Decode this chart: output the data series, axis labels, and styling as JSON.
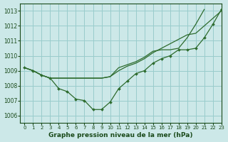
{
  "title": "Graphe pression niveau de la mer (hPa)",
  "bg_color": "#cce8e8",
  "grid_color": "#99cccc",
  "line_color": "#2d6b2d",
  "text_color": "#1a4a1a",
  "xlim": [
    -0.5,
    23
  ],
  "ylim": [
    1005.5,
    1013.5
  ],
  "yticks": [
    1006,
    1007,
    1008,
    1009,
    1010,
    1011,
    1012,
    1013
  ],
  "xticks": [
    0,
    1,
    2,
    3,
    4,
    5,
    6,
    7,
    8,
    9,
    10,
    11,
    12,
    13,
    14,
    15,
    16,
    17,
    18,
    19,
    20,
    21,
    22,
    23
  ],
  "series": [
    {
      "x": [
        0,
        1,
        2,
        3,
        4,
        5,
        6,
        7,
        8,
        9,
        10,
        11,
        12,
        13,
        14,
        15,
        16,
        17,
        18,
        19,
        20,
        21,
        22,
        23
      ],
      "y": [
        1009.2,
        1009.0,
        1008.7,
        1008.5,
        1008.5,
        1008.5,
        1008.5,
        1008.5,
        1008.5,
        1008.5,
        1008.6,
        1009.0,
        1009.3,
        1009.5,
        1009.8,
        1010.2,
        1010.5,
        1010.8,
        1011.1,
        1011.4,
        1011.5,
        1012.0,
        1012.5,
        1013.0
      ],
      "has_marker": false
    },
    {
      "x": [
        0,
        1,
        2,
        3,
        4,
        5,
        6,
        7,
        8,
        9,
        10,
        11,
        12,
        13,
        14,
        15,
        16,
        17,
        18,
        19,
        20,
        21,
        22,
        23
      ],
      "y": [
        1009.2,
        1009.0,
        1008.7,
        1008.5,
        1007.8,
        1007.6,
        1007.1,
        1007.0,
        1006.4,
        1006.4,
        1006.9,
        1007.8,
        1008.3,
        1008.8,
        1009.0,
        1009.5,
        1009.8,
        1010.0,
        1010.4,
        1010.4,
        1010.5,
        1011.2,
        1012.1,
        1013.1
      ],
      "has_marker": true
    },
    {
      "x": [
        0,
        1,
        2,
        3,
        4,
        5,
        6,
        7,
        8,
        9,
        10,
        11,
        12,
        13,
        14,
        15,
        16,
        17,
        18,
        19,
        20,
        21,
        22,
        23
      ],
      "y": [
        1009.2,
        1009.0,
        1008.7,
        1008.5,
        1008.5,
        1008.5,
        1008.5,
        1008.5,
        1008.5,
        1008.5,
        1008.6,
        1009.2,
        1009.4,
        1009.6,
        1009.9,
        1010.3,
        1010.4,
        1010.4,
        1010.5,
        1011.2,
        1012.1,
        1013.1,
        null,
        null
      ],
      "has_marker": false
    }
  ],
  "ylabel_fontsize": 5.5,
  "xlabel_fontsize": 6.5,
  "tick_fontsize": 5.0
}
